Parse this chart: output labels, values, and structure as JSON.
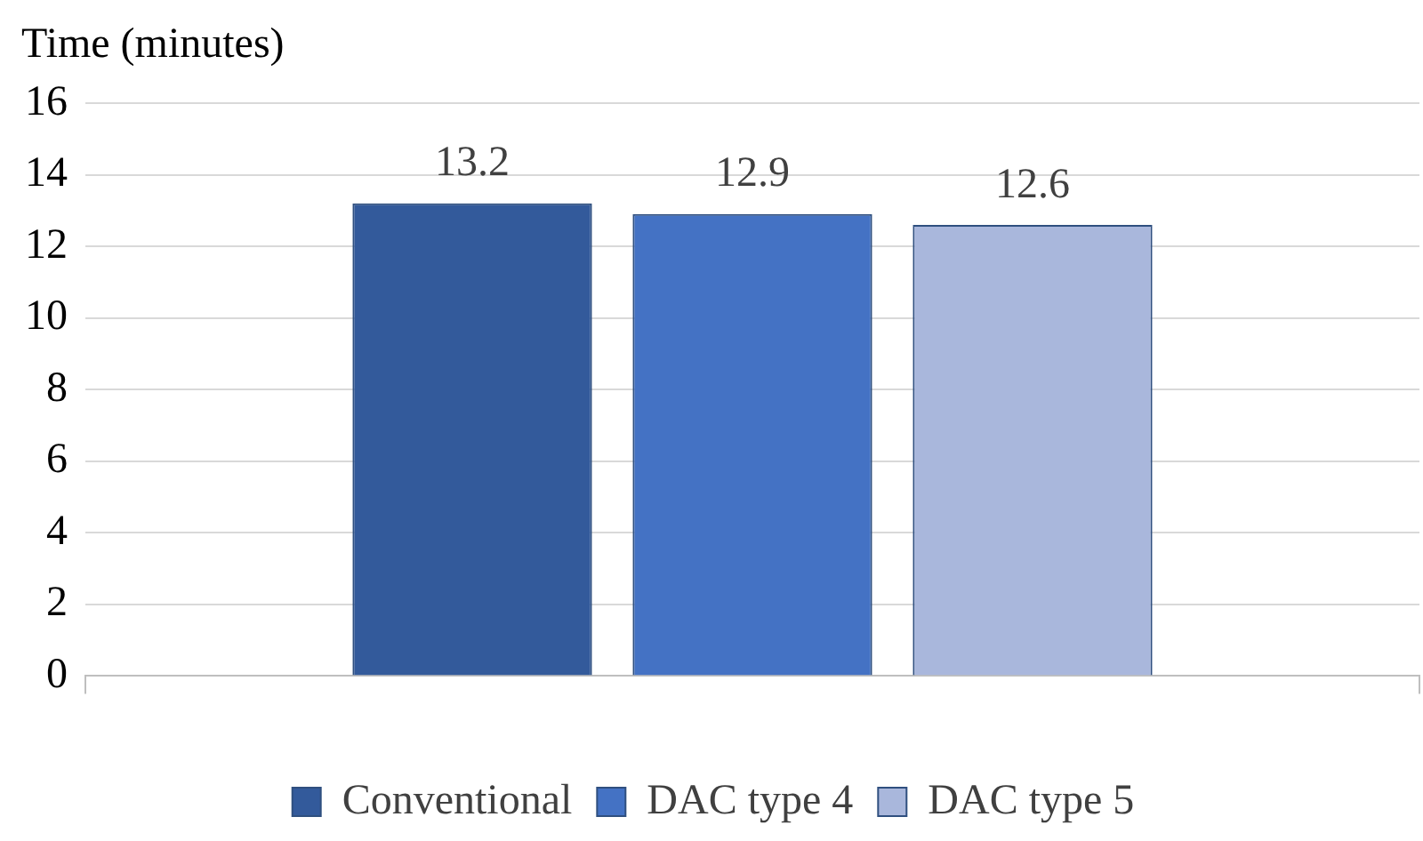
{
  "chart_data": {
    "type": "bar",
    "ylabel": "Time (minutes)",
    "categories": [
      null
    ],
    "series": [
      {
        "name": "Conventional",
        "color": "#335a9b",
        "values": [
          13.2
        ]
      },
      {
        "name": "DAC type 4",
        "color": "#4472c4",
        "values": [
          12.9
        ]
      },
      {
        "name": "DAC type 5",
        "color": "#a9b7dc",
        "values": [
          12.6
        ]
      }
    ],
    "ylim": [
      0,
      16
    ],
    "yticks": [
      0,
      2,
      4,
      6,
      8,
      10,
      12,
      14,
      16
    ],
    "grid": "y",
    "legend": "bottom",
    "data_labels": true
  }
}
